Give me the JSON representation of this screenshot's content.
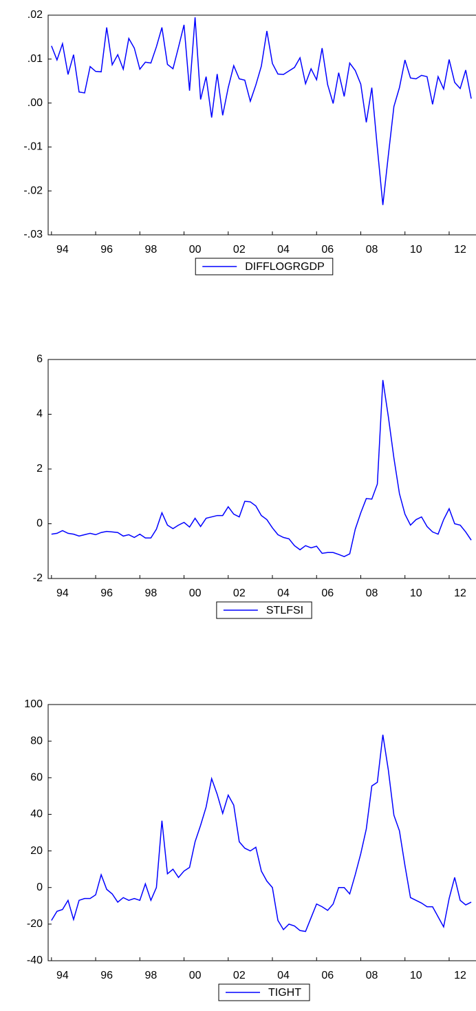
{
  "chart_data": [
    {
      "type": "line",
      "x": [
        1994,
        1994.25,
        1994.5,
        1994.75,
        1995,
        1995.25,
        1995.5,
        1995.75,
        1996,
        1996.25,
        1996.5,
        1996.75,
        1997,
        1997.25,
        1997.5,
        1997.75,
        1998,
        1998.25,
        1998.5,
        1998.75,
        1999,
        1999.25,
        1999.5,
        1999.75,
        2000,
        2000.25,
        2000.5,
        2000.75,
        2001,
        2001.25,
        2001.5,
        2001.75,
        2002,
        2002.25,
        2002.5,
        2002.75,
        2003,
        2003.25,
        2003.5,
        2003.75,
        2004,
        2004.25,
        2004.5,
        2004.75,
        2005,
        2005.25,
        2005.5,
        2005.75,
        2006,
        2006.25,
        2006.5,
        2006.75,
        2007,
        2007.25,
        2007.5,
        2007.75,
        2008,
        2008.25,
        2008.5,
        2008.75,
        2009,
        2009.25,
        2009.5,
        2009.75,
        2010,
        2010.25,
        2010.5,
        2010.75,
        2011,
        2011.25,
        2011.5,
        2011.75,
        2012,
        2012.25,
        2012.5,
        2012.75,
        2013
      ],
      "series": [
        {
          "name": "DIFFLOGRGDP",
          "color": "#0000ff",
          "values": [
            0.013,
            0.0098,
            0.0135,
            0.0065,
            0.011,
            0.0025,
            0.0023,
            0.0083,
            0.0072,
            0.0071,
            0.0172,
            0.0087,
            0.011,
            0.0077,
            0.0147,
            0.0125,
            0.0077,
            0.0093,
            0.0091,
            0.0128,
            0.0172,
            0.0088,
            0.0078,
            0.0127,
            0.0178,
            0.0028,
            0.0195,
            0.0008,
            0.006,
            -0.0033,
            0.0066,
            -0.0028,
            0.0035,
            0.0085,
            0.0055,
            0.0052,
            0.0004,
            0.0041,
            0.0084,
            0.0164,
            0.009,
            0.0066,
            0.0065,
            0.0073,
            0.0081,
            0.0103,
            0.0044,
            0.0078,
            0.0053,
            0.0125,
            0.0042,
            -0.0001,
            0.0069,
            0.0015,
            0.0091,
            0.0074,
            0.0043,
            -0.0044,
            0.0035,
            -0.0102,
            -0.0232,
            -0.0118,
            -0.0008,
            0.0035,
            0.0098,
            0.0057,
            0.0055,
            0.0063,
            0.006,
            -0.0003,
            0.006,
            0.0032,
            0.0099,
            0.0047,
            0.0033,
            0.0075,
            0.001
          ]
        }
      ],
      "xlim": [
        1993.85,
        2013.2
      ],
      "xticks": [
        {
          "value": 1994,
          "label": "94"
        },
        {
          "value": 1996,
          "label": "96"
        },
        {
          "value": 1998,
          "label": "98"
        },
        {
          "value": 2000,
          "label": "00"
        },
        {
          "value": 2002,
          "label": "02"
        },
        {
          "value": 2004,
          "label": "04"
        },
        {
          "value": 2006,
          "label": "06"
        },
        {
          "value": 2008,
          "label": "08"
        },
        {
          "value": 2010,
          "label": "10"
        },
        {
          "value": 2012,
          "label": "12"
        }
      ],
      "ylim": [
        -0.03,
        0.02
      ],
      "yticks": [
        {
          "value": 0.02,
          "label": ".02"
        },
        {
          "value": 0.01,
          "label": ".01"
        },
        {
          "value": 0,
          "label": ".00"
        },
        {
          "value": -0.01,
          "label": "-.01"
        },
        {
          "value": -0.02,
          "label": "-.02"
        },
        {
          "value": -0.03,
          "label": "-.03"
        }
      ],
      "legend": "bottom"
    },
    {
      "type": "line",
      "x": [
        1994,
        1994.25,
        1994.5,
        1994.75,
        1995,
        1995.25,
        1995.5,
        1995.75,
        1996,
        1996.25,
        1996.5,
        1996.75,
        1997,
        1997.25,
        1997.5,
        1997.75,
        1998,
        1998.25,
        1998.5,
        1998.75,
        1999,
        1999.25,
        1999.5,
        1999.75,
        2000,
        2000.25,
        2000.5,
        2000.75,
        2001,
        2001.25,
        2001.5,
        2001.75,
        2002,
        2002.25,
        2002.5,
        2002.75,
        2003,
        2003.25,
        2003.5,
        2003.75,
        2004,
        2004.25,
        2004.5,
        2004.75,
        2005,
        2005.25,
        2005.5,
        2005.75,
        2006,
        2006.25,
        2006.5,
        2006.75,
        2007,
        2007.25,
        2007.5,
        2007.75,
        2008,
        2008.25,
        2008.5,
        2008.75,
        2009,
        2009.25,
        2009.5,
        2009.75,
        2010,
        2010.25,
        2010.5,
        2010.75,
        2011,
        2011.25,
        2011.5,
        2011.75,
        2012,
        2012.25,
        2012.5,
        2012.75,
        2013
      ],
      "series": [
        {
          "name": "STLFSI",
          "color": "#0000ff",
          "values": [
            -0.38,
            -0.35,
            -0.25,
            -0.35,
            -0.38,
            -0.45,
            -0.4,
            -0.35,
            -0.4,
            -0.32,
            -0.28,
            -0.3,
            -0.32,
            -0.45,
            -0.4,
            -0.5,
            -0.38,
            -0.52,
            -0.52,
            -0.2,
            0.4,
            -0.05,
            -0.18,
            -0.05,
            0.05,
            -0.12,
            0.2,
            -0.1,
            0.2,
            0.25,
            0.3,
            0.3,
            0.62,
            0.35,
            0.25,
            0.82,
            0.8,
            0.65,
            0.3,
            0.15,
            -0.15,
            -0.4,
            -0.5,
            -0.55,
            -0.8,
            -0.95,
            -0.8,
            -0.88,
            -0.82,
            -1.08,
            -1.05,
            -1.05,
            -1.12,
            -1.2,
            -1.1,
            -0.2,
            0.4,
            0.92,
            0.9,
            1.45,
            5.25,
            3.9,
            2.4,
            1.1,
            0.35,
            -0.05,
            0.15,
            0.25,
            -0.1,
            -0.3,
            -0.38,
            0.15,
            0.55,
            0,
            -0.05,
            -0.3,
            -0.6
          ]
        }
      ],
      "xlim": [
        1993.85,
        2013.2
      ],
      "xticks": [
        {
          "value": 1994,
          "label": "94"
        },
        {
          "value": 1996,
          "label": "96"
        },
        {
          "value": 1998,
          "label": "98"
        },
        {
          "value": 2000,
          "label": "00"
        },
        {
          "value": 2002,
          "label": "02"
        },
        {
          "value": 2004,
          "label": "04"
        },
        {
          "value": 2006,
          "label": "06"
        },
        {
          "value": 2008,
          "label": "08"
        },
        {
          "value": 2010,
          "label": "10"
        },
        {
          "value": 2012,
          "label": "12"
        }
      ],
      "ylim": [
        -2,
        6
      ],
      "yticks": [
        6,
        4,
        2,
        0,
        -2
      ],
      "legend": "bottom"
    },
    {
      "type": "line",
      "x": [
        1994,
        1994.25,
        1994.5,
        1994.75,
        1995,
        1995.25,
        1995.5,
        1995.75,
        1996,
        1996.25,
        1996.5,
        1996.75,
        1997,
        1997.25,
        1997.5,
        1997.75,
        1998,
        1998.25,
        1998.5,
        1998.75,
        1999,
        1999.25,
        1999.5,
        1999.75,
        2000,
        2000.25,
        2000.5,
        2000.75,
        2001,
        2001.25,
        2001.5,
        2001.75,
        2002,
        2002.25,
        2002.5,
        2002.75,
        2003,
        2003.25,
        2003.5,
        2003.75,
        2004,
        2004.25,
        2004.5,
        2004.75,
        2005,
        2005.25,
        2005.5,
        2005.75,
        2006,
        2006.25,
        2006.5,
        2006.75,
        2007,
        2007.25,
        2007.5,
        2007.75,
        2008,
        2008.25,
        2008.5,
        2008.75,
        2009,
        2009.25,
        2009.5,
        2009.75,
        2010,
        2010.25,
        2010.5,
        2010.75,
        2011,
        2011.25,
        2011.5,
        2011.75,
        2012,
        2012.25,
        2012.5,
        2012.75,
        2013
      ],
      "series": [
        {
          "name": "TIGHT",
          "color": "#0000ff",
          "values": [
            -18,
            -13,
            -12,
            -7,
            -17.5,
            -7,
            -6,
            -6,
            -4,
            7,
            -1,
            -3.5,
            -8,
            -5.5,
            -7,
            -6,
            -7,
            2,
            -7,
            0,
            36.5,
            7.5,
            10,
            5.5,
            9,
            11,
            25,
            34,
            44,
            59.5,
            51,
            40.5,
            50.5,
            45,
            25,
            21.5,
            20,
            22,
            9,
            3.5,
            0,
            -18,
            -23,
            -20,
            -21,
            -23.5,
            -24,
            -16.5,
            -9,
            -10.5,
            -12.5,
            -9,
            0,
            0,
            -3.5,
            7,
            18.5,
            32,
            55.5,
            57.5,
            83.5,
            64,
            39.5,
            31,
            12,
            -5.5,
            -7,
            -8.5,
            -10.5,
            -10.5,
            -16,
            -21.5,
            -6,
            5.5,
            -7,
            -9.5,
            -8
          ]
        }
      ],
      "xlim": [
        1993.85,
        2013.2
      ],
      "xticks": [
        {
          "value": 1994,
          "label": "94"
        },
        {
          "value": 1996,
          "label": "96"
        },
        {
          "value": 1998,
          "label": "98"
        },
        {
          "value": 2000,
          "label": "00"
        },
        {
          "value": 2002,
          "label": "02"
        },
        {
          "value": 2004,
          "label": "04"
        },
        {
          "value": 2006,
          "label": "06"
        },
        {
          "value": 2008,
          "label": "08"
        },
        {
          "value": 2010,
          "label": "10"
        },
        {
          "value": 2012,
          "label": "12"
        }
      ],
      "ylim": [
        -40,
        100
      ],
      "yticks": [
        100,
        80,
        60,
        40,
        20,
        0,
        -20,
        -40
      ],
      "legend": "bottom"
    }
  ]
}
